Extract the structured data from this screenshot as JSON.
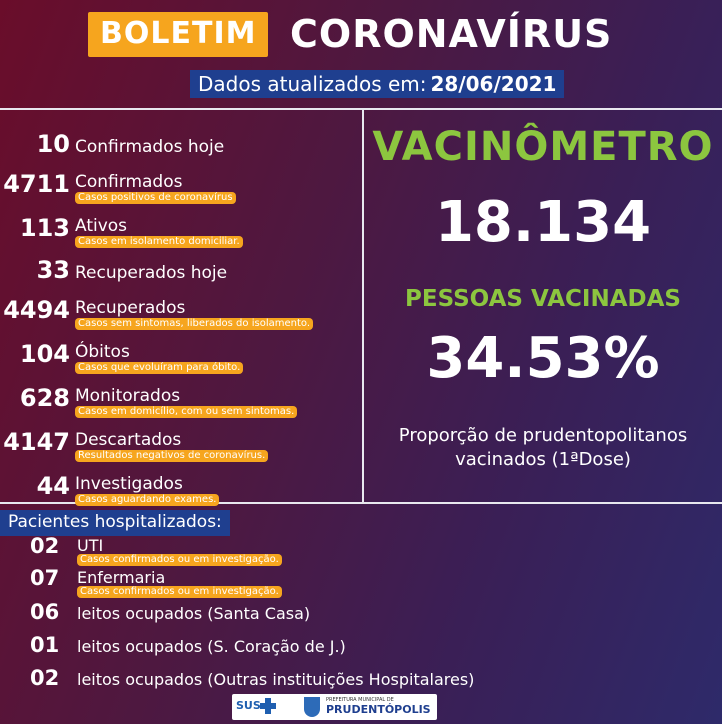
{
  "header": {
    "title_box": "BOLETIM",
    "title_text": "CORONAVÍRUS",
    "date_label": "Dados atualizados em:",
    "date_value": "28/06/2021"
  },
  "stats": [
    {
      "num": "10",
      "label": "Confirmados hoje",
      "sub": ""
    },
    {
      "num": "4711",
      "label": "Confirmados",
      "sub": "Casos positivos de coronavírus"
    },
    {
      "num": "113",
      "label": "Ativos",
      "sub": "Casos em isolamento domiciliar."
    },
    {
      "num": "33",
      "label": "Recuperados hoje",
      "sub": ""
    },
    {
      "num": "4494",
      "label": "Recuperados",
      "sub": "Casos sem sintomas, liberados do isolamento."
    },
    {
      "num": "104",
      "label": "Óbitos",
      "sub": "Casos que evoluíram para óbito."
    },
    {
      "num": "628",
      "label": "Monitorados",
      "sub": "Casos em domicílio, com ou sem sintomas."
    },
    {
      "num": "4147",
      "label": "Descartados",
      "sub": "Resultados negativos de coronavírus."
    },
    {
      "num": "44",
      "label": "Investigados",
      "sub": "Casos aguardando exames."
    }
  ],
  "vaccine": {
    "title": "VACINÔMETRO",
    "count": "18.134",
    "subtitle": "PESSOAS VACINADAS",
    "percent": "34.53%",
    "description_line1": "Proporção de prudentopolitanos",
    "description_line2": "vacinados (1ªDose)"
  },
  "hospital": {
    "title": "Pacientes hospitalizados:",
    "rows": [
      {
        "num": "02",
        "label": "UTI",
        "sub": "Casos confirmados ou em investigação."
      },
      {
        "num": "07",
        "label": "Enfermaria",
        "sub": "Casos confirmados ou em investigação."
      },
      {
        "num": "06",
        "label": "leitos ocupados  (Santa Casa)",
        "sub": ""
      },
      {
        "num": "01",
        "label": "leitos ocupados  (S. Coração de J.)",
        "sub": ""
      },
      {
        "num": "02",
        "label": "leitos ocupados  (Outras instituições Hospitalares)",
        "sub": ""
      }
    ]
  },
  "footer": {
    "sus_label": "SUS",
    "prefeitura_small": "PREFEITURA MUNICIPAL DE",
    "prefeitura_name": "PRUDENTÓPOLIS"
  },
  "colors": {
    "orange": "#f6a51e",
    "green": "#8cc63f",
    "blue_bar": "#1f3f8f"
  }
}
